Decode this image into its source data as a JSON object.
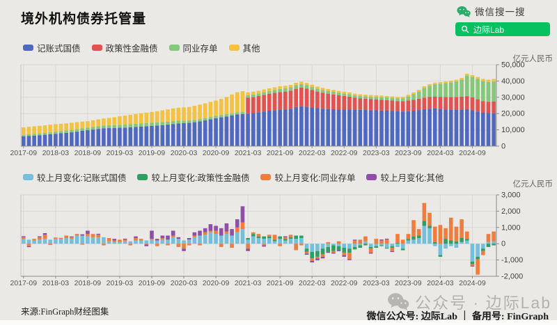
{
  "header": {
    "title": "境外机构债券托管量",
    "wechat_search_label": "微信搜一搜",
    "search_button_label": "边际Lab"
  },
  "colors": {
    "wechat_green": "#07c160",
    "page_bg": "#ebe9e6"
  },
  "chart_data": [
    {
      "type": "bar",
      "stacked": true,
      "title": "境外机构债券托管量",
      "unit": "亿元人民币",
      "x_start": "2017-09",
      "bar_count": 89,
      "ylim": [
        0,
        50000
      ],
      "grid": true,
      "legend_position": "top-left",
      "x_ticks": [
        {
          "label": "2017-09",
          "index": 0
        },
        {
          "label": "2018-03",
          "index": 6
        },
        {
          "label": "2018-09",
          "index": 12
        },
        {
          "label": "2019-03",
          "index": 18
        },
        {
          "label": "2019-09",
          "index": 24
        },
        {
          "label": "2020-03",
          "index": 30
        },
        {
          "label": "2020-09",
          "index": 36
        },
        {
          "label": "2021-03",
          "index": 42
        },
        {
          "label": "2021-09",
          "index": 48
        },
        {
          "label": "2022-03",
          "index": 54
        },
        {
          "label": "2022-09",
          "index": 60
        },
        {
          "label": "2023-03",
          "index": 66
        },
        {
          "label": "2023-09",
          "index": 72
        },
        {
          "label": "2024-03",
          "index": 78
        },
        {
          "label": "2024-09",
          "index": 84
        }
      ],
      "y_ticks": [
        {
          "v": 0,
          "label": "0"
        },
        {
          "v": 10000,
          "label": "10,000"
        },
        {
          "v": 20000,
          "label": "20,000"
        },
        {
          "v": 30000,
          "label": "30,000"
        },
        {
          "v": 40000,
          "label": "40,000"
        },
        {
          "v": 50000,
          "label": "50,000"
        }
      ],
      "series": [
        {
          "name": "记账式国债",
          "color": "#5069be",
          "values": [
            6000,
            6300,
            6500,
            6700,
            7000,
            7300,
            7600,
            7900,
            8200,
            8500,
            8900,
            9400,
            9800,
            10200,
            10600,
            11000,
            11100,
            11200,
            11300,
            11400,
            11600,
            11800,
            12000,
            12200,
            12400,
            12600,
            12900,
            13200,
            13600,
            13900,
            14100,
            14300,
            14700,
            15200,
            15800,
            16500,
            17100,
            17700,
            18200,
            18800,
            19500,
            19800,
            20000,
            20300,
            20800,
            21300,
            21800,
            22100,
            22400,
            22600,
            23000,
            24000,
            24500,
            24200,
            23700,
            23300,
            23000,
            22800,
            22700,
            22600,
            22600,
            22600,
            22400,
            22300,
            22200,
            22100,
            22000,
            21900,
            21800,
            21600,
            21400,
            21300,
            21500,
            21800,
            22200,
            22700,
            23000,
            23100,
            22800,
            22600,
            22500,
            22400,
            22500,
            22700,
            22000,
            21200,
            20500,
            20300,
            20400
          ]
        },
        {
          "name": "政策性金融债",
          "color": "#e05352",
          "values": [
            0,
            0,
            0,
            0,
            0,
            0,
            0,
            0,
            0,
            0,
            0,
            0,
            0,
            0,
            0,
            0,
            0,
            0,
            0,
            0,
            0,
            0,
            0,
            0,
            0,
            0,
            0,
            0,
            0,
            0,
            0,
            0,
            0,
            0,
            0,
            0,
            0,
            0,
            0,
            0,
            0,
            0,
            9800,
            9900,
            10000,
            10200,
            10400,
            10600,
            10800,
            10900,
            11000,
            11200,
            11500,
            11200,
            10700,
            10200,
            9800,
            9400,
            9000,
            8600,
            8200,
            7800,
            7400,
            7100,
            6900,
            6800,
            6700,
            6600,
            6500,
            6400,
            6300,
            6300,
            6500,
            6700,
            6900,
            7100,
            7300,
            7400,
            7500,
            7600,
            7700,
            7800,
            7900,
            8000,
            7900,
            7600,
            7200,
            7000,
            7100
          ]
        },
        {
          "name": "同业存单",
          "color": "#85c87c",
          "values": [
            900,
            950,
            1000,
            1000,
            1100,
            1200,
            1300,
            1350,
            1400,
            1450,
            1500,
            1500,
            1500,
            1550,
            1600,
            1650,
            1700,
            1750,
            1800,
            1850,
            1900,
            1950,
            2000,
            2000,
            2000,
            1950,
            1900,
            1850,
            1800,
            1700,
            1600,
            1500,
            1450,
            1400,
            1400,
            1400,
            1500,
            1500,
            1450,
            1400,
            1350,
            1300,
            1400,
            1450,
            1500,
            1600,
            1700,
            1800,
            1900,
            2000,
            2100,
            2200,
            2100,
            2000,
            1900,
            1800,
            1700,
            1700,
            1650,
            1600,
            1550,
            1500,
            1450,
            1400,
            1450,
            1500,
            1500,
            1550,
            1600,
            1650,
            1700,
            1800,
            2500,
            3500,
            4500,
            6000,
            6800,
            7500,
            8000,
            8500,
            9000,
            9600,
            10500,
            12800,
            12600,
            12500,
            12300,
            12100,
            12300
          ]
        },
        {
          "name": "其他",
          "color": "#f2c240",
          "values": [
            4600,
            4600,
            4700,
            4800,
            4700,
            4700,
            4600,
            4500,
            4400,
            4400,
            4300,
            4200,
            4000,
            4100,
            4200,
            4300,
            4500,
            4800,
            5200,
            5500,
            5800,
            6000,
            6200,
            6400,
            6600,
            6900,
            7200,
            7500,
            7800,
            8000,
            8100,
            8300,
            8600,
            8900,
            9100,
            9300,
            9400,
            9800,
            10600,
            11500,
            12300,
            12700,
            1800,
            1800,
            1700,
            1700,
            1600,
            1600,
            1700,
            1600,
            1500,
            1500,
            1500,
            1400,
            1400,
            1300,
            1300,
            1200,
            1200,
            1100,
            1100,
            1100,
            1000,
            1000,
            1000,
            1000,
            1000,
            1000,
            900,
            900,
            900,
            900,
            1000,
            1000,
            1000,
            1000,
            1000,
            1000,
            1000,
            1000,
            1000,
            1000,
            1000,
            1000,
            1100,
            1200,
            1300,
            1400,
            1500
          ]
        }
      ]
    },
    {
      "type": "bar",
      "stacked": true,
      "title": "较上月变化",
      "unit": "亿元人民币",
      "x_start": "2017-09",
      "bar_count": 89,
      "ylim": [
        -2000,
        3000
      ],
      "grid": true,
      "legend_position": "top-left",
      "x_ticks": [
        {
          "label": "2017-09",
          "index": 0
        },
        {
          "label": "2018-03",
          "index": 6
        },
        {
          "label": "2018-09",
          "index": 12
        },
        {
          "label": "2019-03",
          "index": 18
        },
        {
          "label": "2019-09",
          "index": 24
        },
        {
          "label": "2020-03",
          "index": 30
        },
        {
          "label": "2020-09",
          "index": 36
        },
        {
          "label": "2021-03",
          "index": 42
        },
        {
          "label": "2021-09",
          "index": 48
        },
        {
          "label": "2022-03",
          "index": 54
        },
        {
          "label": "2022-09",
          "index": 60
        },
        {
          "label": "2023-03",
          "index": 66
        },
        {
          "label": "2023-09",
          "index": 72
        },
        {
          "label": "2024-03",
          "index": 78
        },
        {
          "label": "2024-09",
          "index": 84
        }
      ],
      "y_ticks": [
        {
          "v": -2000,
          "label": "-2,000"
        },
        {
          "v": -1000,
          "label": "-1,000"
        },
        {
          "v": 0,
          "label": "0"
        },
        {
          "v": 1000,
          "label": "1,000"
        },
        {
          "v": 2000,
          "label": "2,000"
        },
        {
          "v": 3000,
          "label": "3,000"
        }
      ],
      "series": [
        {
          "name": "较上月变化:记账式国债",
          "color": "#74bfdc",
          "values": [
            300,
            250,
            200,
            250,
            300,
            250,
            300,
            300,
            350,
            300,
            500,
            500,
            450,
            400,
            400,
            400,
            150,
            100,
            100,
            150,
            150,
            200,
            200,
            200,
            250,
            200,
            250,
            250,
            400,
            300,
            200,
            250,
            400,
            500,
            550,
            700,
            600,
            500,
            600,
            500,
            700,
            900,
            250,
            450,
            350,
            300,
            350,
            150,
            300,
            200,
            300,
            300,
            350,
            -300,
            -500,
            -450,
            -300,
            -200,
            -100,
            -150,
            -250,
            -300,
            -200,
            -100,
            150,
            -200,
            -150,
            -100,
            -250,
            -150,
            -200,
            -300,
            200,
            250,
            350,
            1100,
            950,
            -150,
            -700,
            -300,
            -150,
            -250,
            100,
            200,
            -1100,
            -800,
            -300,
            100,
            150
          ]
        },
        {
          "name": "较上月变化:政策性金融债",
          "color": "#2f9e62",
          "values": [
            0,
            0,
            0,
            0,
            0,
            0,
            0,
            0,
            0,
            0,
            0,
            0,
            0,
            0,
            0,
            0,
            0,
            0,
            0,
            0,
            0,
            0,
            0,
            0,
            0,
            0,
            0,
            0,
            0,
            0,
            0,
            0,
            0,
            0,
            0,
            0,
            0,
            0,
            0,
            0,
            0,
            0,
            100,
            150,
            100,
            150,
            100,
            100,
            150,
            100,
            100,
            200,
            150,
            -200,
            -400,
            -350,
            -350,
            -300,
            -350,
            -250,
            -300,
            -250,
            -150,
            -150,
            -100,
            -100,
            -100,
            -50,
            -50,
            -100,
            50,
            -100,
            100,
            200,
            150,
            300,
            150,
            100,
            -100,
            300,
            200,
            150,
            250,
            100,
            -150,
            -150,
            -150,
            -200,
            -100
          ]
        },
        {
          "name": "较上月变化:同业存单",
          "color": "#ef7e3e",
          "values": [
            100,
            -150,
            100,
            150,
            250,
            -80,
            80,
            60,
            150,
            100,
            100,
            -60,
            150,
            200,
            150,
            -100,
            200,
            100,
            150,
            100,
            -100,
            150,
            100,
            -50,
            50,
            -150,
            100,
            -100,
            100,
            -200,
            -300,
            -100,
            100,
            -100,
            150,
            100,
            200,
            -200,
            150,
            -250,
            300,
            400,
            -300,
            100,
            150,
            -100,
            100,
            300,
            -150,
            100,
            150,
            -400,
            -100,
            -100,
            -150,
            -100,
            -150,
            100,
            -100,
            150,
            -150,
            -400,
            200,
            250,
            300,
            -250,
            300,
            200,
            250,
            -200,
            550,
            250,
            300,
            1000,
            400,
            1100,
            800,
            950,
            1150,
            650,
            1400,
            900,
            1150,
            450,
            -100,
            -950,
            -250,
            500,
            600
          ]
        },
        {
          "name": "较上月变化:其他",
          "color": "#8f4fa8",
          "values": [
            60,
            -60,
            0,
            60,
            100,
            0,
            0,
            0,
            0,
            50,
            0,
            80,
            200,
            0,
            60,
            0,
            0,
            100,
            0,
            60,
            0,
            100,
            0,
            -100,
            500,
            100,
            150,
            250,
            300,
            100,
            -150,
            100,
            200,
            300,
            250,
            400,
            300,
            450,
            500,
            400,
            500,
            1000,
            -150,
            0,
            0,
            -80,
            0,
            0,
            0,
            60,
            0,
            0,
            0,
            -80,
            -100,
            -120,
            -100,
            -60,
            -60,
            -60,
            -100,
            -60,
            50,
            0,
            0,
            -60,
            0,
            60,
            60,
            -60,
            0,
            0,
            0,
            0,
            0,
            0,
            0,
            0,
            0,
            0,
            0,
            0,
            0,
            0,
            -50,
            0,
            0,
            0,
            0
          ]
        }
      ]
    }
  ],
  "footer": {
    "source": "来源:FinGraph财经图集",
    "watermark": "公众号 · 边际Lab",
    "account_line": "微信公众号: 边际Lab ｜ 备用号: FinGraph"
  }
}
